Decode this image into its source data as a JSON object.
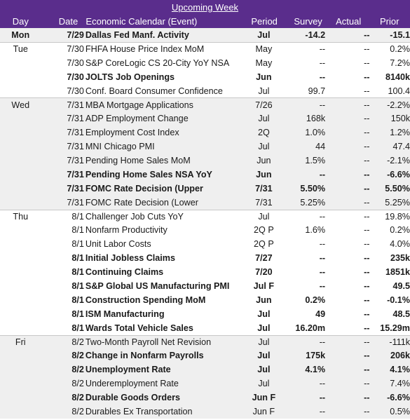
{
  "title": "Upcoming Week",
  "headers": {
    "day": "Day",
    "date": "Date",
    "event": "Economic Calendar (Event)",
    "period": "Period",
    "survey": "Survey",
    "actual": "Actual",
    "prior": "Prior"
  },
  "colors": {
    "header_bg": "#5a2d8c",
    "header_text": "#ffffff",
    "shade_bg": "#efefef"
  },
  "rows": [
    {
      "day": "Mon",
      "date": "7/29",
      "event": "Dallas Fed Manf. Activity",
      "period": "Jul",
      "survey": "-14.2",
      "actual": "--",
      "prior": "-15.1",
      "bold": true,
      "shade": true,
      "group_start": false
    },
    {
      "day": "Tue",
      "date": "7/30",
      "event": "FHFA House Price Index MoM",
      "period": "May",
      "survey": "--",
      "actual": "--",
      "prior": "0.2%",
      "bold": false,
      "shade": false,
      "group_start": true
    },
    {
      "day": "",
      "date": "7/30",
      "event": "S&P CoreLogic CS 20-City YoY NSA",
      "period": "May",
      "survey": "--",
      "actual": "--",
      "prior": "7.2%",
      "bold": false,
      "shade": false,
      "group_start": false
    },
    {
      "day": "",
      "date": "7/30",
      "event": "JOLTS Job Openings",
      "period": "Jun",
      "survey": "--",
      "actual": "--",
      "prior": "8140k",
      "bold": true,
      "shade": false,
      "group_start": false
    },
    {
      "day": "",
      "date": "7/30",
      "event": "Conf. Board Consumer Confidence",
      "period": "Jul",
      "survey": "99.7",
      "actual": "--",
      "prior": "100.4",
      "bold": false,
      "shade": false,
      "group_start": false
    },
    {
      "day": "Wed",
      "date": "7/31",
      "event": "MBA Mortgage Applications",
      "period": "7/26",
      "survey": "--",
      "actual": "--",
      "prior": "-2.2%",
      "bold": false,
      "shade": true,
      "group_start": true
    },
    {
      "day": "",
      "date": "7/31",
      "event": "ADP Employment Change",
      "period": "Jul",
      "survey": "168k",
      "actual": "--",
      "prior": "150k",
      "bold": false,
      "shade": true,
      "group_start": false
    },
    {
      "day": "",
      "date": "7/31",
      "event": "Employment Cost Index",
      "period": "2Q",
      "survey": "1.0%",
      "actual": "--",
      "prior": "1.2%",
      "bold": false,
      "shade": true,
      "group_start": false
    },
    {
      "day": "",
      "date": "7/31",
      "event": "MNI Chicago PMI",
      "period": "Jul",
      "survey": "44",
      "actual": "--",
      "prior": "47.4",
      "bold": false,
      "shade": true,
      "group_start": false
    },
    {
      "day": "",
      "date": "7/31",
      "event": "Pending Home Sales MoM",
      "period": "Jun",
      "survey": "1.5%",
      "actual": "--",
      "prior": "-2.1%",
      "bold": false,
      "shade": true,
      "group_start": false
    },
    {
      "day": "",
      "date": "7/31",
      "event": "Pending Home Sales NSA YoY",
      "period": "Jun",
      "survey": "--",
      "actual": "--",
      "prior": "-6.6%",
      "bold": true,
      "shade": true,
      "group_start": false
    },
    {
      "day": "",
      "date": "7/31",
      "event": "FOMC Rate Decision (Upper",
      "period": "7/31",
      "survey": "5.50%",
      "actual": "--",
      "prior": "5.50%",
      "bold": true,
      "shade": true,
      "group_start": false
    },
    {
      "day": "",
      "date": "7/31",
      "event": "FOMC Rate Decision (Lower",
      "period": "7/31",
      "survey": "5.25%",
      "actual": "--",
      "prior": "5.25%",
      "bold": false,
      "shade": true,
      "group_start": false
    },
    {
      "day": "Thu",
      "date": "8/1",
      "event": "Challenger Job Cuts YoY",
      "period": "Jul",
      "survey": "--",
      "actual": "--",
      "prior": "19.8%",
      "bold": false,
      "shade": false,
      "group_start": true
    },
    {
      "day": "",
      "date": "8/1",
      "event": "Nonfarm Productivity",
      "period": "2Q P",
      "survey": "1.6%",
      "actual": "--",
      "prior": "0.2%",
      "bold": false,
      "shade": false,
      "group_start": false
    },
    {
      "day": "",
      "date": "8/1",
      "event": "Unit Labor Costs",
      "period": "2Q P",
      "survey": "--",
      "actual": "--",
      "prior": "4.0%",
      "bold": false,
      "shade": false,
      "group_start": false
    },
    {
      "day": "",
      "date": "8/1",
      "event": "Initial Jobless Claims",
      "period": "7/27",
      "survey": "--",
      "actual": "--",
      "prior": "235k",
      "bold": true,
      "shade": false,
      "group_start": false
    },
    {
      "day": "",
      "date": "8/1",
      "event": "Continuing Claims",
      "period": "7/20",
      "survey": "--",
      "actual": "--",
      "prior": "1851k",
      "bold": true,
      "shade": false,
      "group_start": false
    },
    {
      "day": "",
      "date": "8/1",
      "event": "S&P Global US Manufacturing PMI",
      "period": "Jul F",
      "survey": "--",
      "actual": "--",
      "prior": "49.5",
      "bold": true,
      "shade": false,
      "group_start": false
    },
    {
      "day": "",
      "date": "8/1",
      "event": "Construction Spending MoM",
      "period": "Jun",
      "survey": "0.2%",
      "actual": "--",
      "prior": "-0.1%",
      "bold": true,
      "shade": false,
      "group_start": false
    },
    {
      "day": "",
      "date": "8/1",
      "event": "ISM Manufacturing",
      "period": "Jul",
      "survey": "49",
      "actual": "--",
      "prior": "48.5",
      "bold": true,
      "shade": false,
      "group_start": false
    },
    {
      "day": "",
      "date": "8/1",
      "event": "Wards Total Vehicle Sales",
      "period": "Jul",
      "survey": "16.20m",
      "actual": "--",
      "prior": "15.29m",
      "bold": true,
      "shade": false,
      "group_start": false
    },
    {
      "day": "Fri",
      "date": "8/2",
      "event": "Two-Month Payroll Net Revision",
      "period": "Jul",
      "survey": "--",
      "actual": "--",
      "prior": "-111k",
      "bold": false,
      "shade": true,
      "group_start": true
    },
    {
      "day": "",
      "date": "8/2",
      "event": "Change in Nonfarm Payrolls",
      "period": "Jul",
      "survey": "175k",
      "actual": "--",
      "prior": "206k",
      "bold": true,
      "shade": true,
      "group_start": false
    },
    {
      "day": "",
      "date": "8/2",
      "event": "Unemployment Rate",
      "period": "Jul",
      "survey": "4.1%",
      "actual": "--",
      "prior": "4.1%",
      "bold": true,
      "shade": true,
      "group_start": false
    },
    {
      "day": "",
      "date": "8/2",
      "event": "Underemployment Rate",
      "period": "Jul",
      "survey": "--",
      "actual": "--",
      "prior": "7.4%",
      "bold": false,
      "shade": true,
      "group_start": false
    },
    {
      "day": "",
      "date": "8/2",
      "event": "Durable Goods Orders",
      "period": "Jun F",
      "survey": "--",
      "actual": "--",
      "prior": "-6.6%",
      "bold": true,
      "shade": true,
      "group_start": false
    },
    {
      "day": "",
      "date": "8/2",
      "event": "Durables Ex Transportation",
      "period": "Jun F",
      "survey": "--",
      "actual": "--",
      "prior": "0.5%",
      "bold": false,
      "shade": true,
      "group_start": false
    }
  ]
}
